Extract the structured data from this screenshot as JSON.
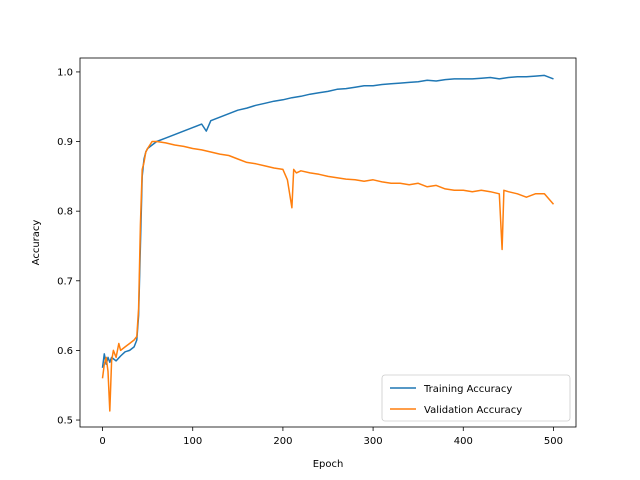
{
  "chart_data": {
    "type": "line",
    "title": "",
    "xlabel": "Epoch",
    "ylabel": "Accuracy",
    "xlim": [
      -25,
      525
    ],
    "ylim": [
      0.49,
      1.02
    ],
    "xticks": [
      0,
      100,
      200,
      300,
      400,
      500
    ],
    "yticks": [
      0.5,
      0.6,
      0.7,
      0.8,
      0.9,
      1.0
    ],
    "xtick_labels": [
      "0",
      "100",
      "200",
      "300",
      "400",
      "500"
    ],
    "ytick_labels": [
      "0.5",
      "0.6",
      "0.7",
      "0.8",
      "0.9",
      "1.0"
    ],
    "grid": false,
    "legend": "lower-right",
    "series": [
      {
        "name": "Training Accuracy",
        "color": "#1f77b4",
        "x": [
          0,
          2,
          4,
          6,
          8,
          10,
          15,
          20,
          25,
          30,
          35,
          38,
          40,
          42,
          44,
          46,
          48,
          50,
          55,
          60,
          70,
          80,
          90,
          100,
          110,
          115,
          120,
          130,
          140,
          150,
          160,
          170,
          180,
          190,
          200,
          210,
          220,
          230,
          240,
          250,
          260,
          270,
          280,
          290,
          300,
          310,
          320,
          330,
          340,
          350,
          360,
          370,
          380,
          390,
          400,
          410,
          420,
          430,
          440,
          450,
          460,
          470,
          480,
          490,
          500
        ],
        "y": [
          0.575,
          0.595,
          0.58,
          0.59,
          0.583,
          0.59,
          0.585,
          0.592,
          0.598,
          0.6,
          0.605,
          0.615,
          0.65,
          0.75,
          0.85,
          0.875,
          0.885,
          0.89,
          0.895,
          0.9,
          0.905,
          0.91,
          0.915,
          0.92,
          0.925,
          0.915,
          0.93,
          0.935,
          0.94,
          0.945,
          0.948,
          0.952,
          0.955,
          0.958,
          0.96,
          0.963,
          0.965,
          0.968,
          0.97,
          0.972,
          0.975,
          0.976,
          0.978,
          0.98,
          0.98,
          0.982,
          0.983,
          0.984,
          0.985,
          0.986,
          0.988,
          0.987,
          0.989,
          0.99,
          0.99,
          0.99,
          0.991,
          0.992,
          0.99,
          0.992,
          0.993,
          0.993,
          0.994,
          0.995,
          0.99
        ]
      },
      {
        "name": "Validation Accuracy",
        "color": "#ff7f0e",
        "x": [
          0,
          2,
          4,
          6,
          8,
          10,
          12,
          15,
          18,
          20,
          25,
          30,
          35,
          38,
          40,
          42,
          44,
          46,
          48,
          50,
          55,
          60,
          70,
          80,
          90,
          100,
          110,
          120,
          130,
          140,
          150,
          160,
          170,
          180,
          190,
          200,
          205,
          210,
          212,
          215,
          220,
          230,
          240,
          250,
          260,
          270,
          280,
          290,
          300,
          310,
          320,
          330,
          340,
          350,
          360,
          370,
          380,
          390,
          400,
          410,
          420,
          430,
          440,
          443,
          445,
          450,
          460,
          470,
          480,
          490,
          500
        ],
        "y": [
          0.56,
          0.58,
          0.59,
          0.57,
          0.513,
          0.585,
          0.6,
          0.59,
          0.61,
          0.6,
          0.605,
          0.61,
          0.615,
          0.62,
          0.66,
          0.78,
          0.86,
          0.87,
          0.885,
          0.89,
          0.9,
          0.9,
          0.898,
          0.895,
          0.893,
          0.89,
          0.888,
          0.885,
          0.882,
          0.88,
          0.875,
          0.87,
          0.868,
          0.865,
          0.862,
          0.86,
          0.845,
          0.805,
          0.86,
          0.855,
          0.858,
          0.855,
          0.853,
          0.85,
          0.848,
          0.846,
          0.845,
          0.843,
          0.845,
          0.842,
          0.84,
          0.84,
          0.838,
          0.84,
          0.835,
          0.837,
          0.832,
          0.83,
          0.83,
          0.828,
          0.83,
          0.828,
          0.825,
          0.745,
          0.83,
          0.828,
          0.825,
          0.82,
          0.825,
          0.825,
          0.81
        ]
      }
    ]
  }
}
